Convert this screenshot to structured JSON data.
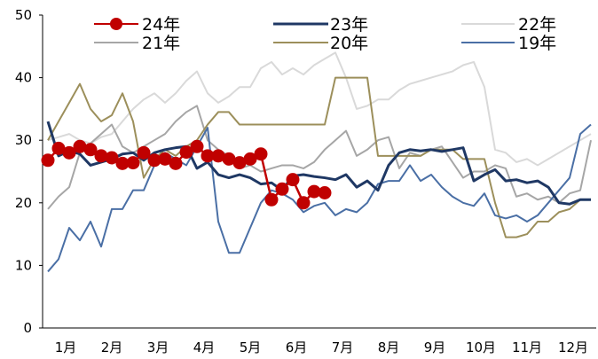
{
  "chart_data": {
    "type": "line",
    "title": "",
    "xlabel": "",
    "ylabel": "",
    "ylim": [
      0,
      50
    ],
    "yticks": [
      0,
      10,
      20,
      30,
      40,
      50
    ],
    "categories": [
      "1月",
      "2月",
      "3月",
      "4月",
      "5月",
      "6月",
      "7月",
      "8月",
      "9月",
      "10月",
      "11月",
      "12月"
    ],
    "x_unit": "week of year (1-52)",
    "grid": false,
    "legend_position": "top",
    "series": [
      {
        "name": "24年",
        "color": "#c00000",
        "markers": true,
        "x": [
          1,
          2,
          3,
          4,
          5,
          6,
          7,
          8,
          9,
          10,
          11,
          12,
          13,
          14,
          15,
          16,
          17,
          18,
          19,
          20,
          21,
          22,
          23,
          24,
          25,
          26,
          27,
          28
        ],
        "values": [
          26.8,
          28.7,
          28.0,
          29.0,
          28.5,
          27.5,
          27.2,
          26.3,
          26.4,
          28.0,
          26.8,
          27.0,
          26.3,
          28.1,
          29.0,
          27.5,
          27.5,
          27.0,
          26.4,
          27.0,
          27.8,
          20.5,
          22.2,
          23.7,
          20.0,
          21.8,
          21.6,
          null
        ]
      },
      {
        "name": "23年",
        "color": "#1f3864",
        "markers": false,
        "x": [
          1,
          2,
          3,
          4,
          5,
          6,
          7,
          8,
          9,
          10,
          11,
          12,
          13,
          14,
          15,
          16,
          17,
          18,
          19,
          20,
          21,
          22,
          23,
          24,
          25,
          26,
          27,
          28,
          29,
          30,
          31,
          32,
          33,
          34,
          35,
          36,
          37,
          38,
          39,
          40,
          41,
          42,
          43,
          44,
          45,
          46,
          47,
          48,
          49,
          50,
          51,
          52
        ],
        "values": [
          33,
          27.5,
          28.3,
          27.8,
          26,
          26.5,
          27,
          27.8,
          28,
          26.8,
          28,
          28.5,
          28.8,
          29,
          25.5,
          26.5,
          24.5,
          24,
          24.5,
          24,
          23,
          23.2,
          22,
          24.3,
          24.5,
          24.2,
          24,
          23.7,
          24.5,
          22.5,
          23.5,
          22,
          26,
          28,
          28.5,
          28.3,
          28.5,
          28.2,
          28.5,
          28.8,
          23.5,
          24.5,
          25.3,
          23.5,
          23.7,
          23.2,
          23.5,
          22.5,
          20,
          19.8,
          20.5,
          20.5
        ]
      },
      {
        "name": "22年",
        "color": "#d9d9d9",
        "markers": false,
        "x": [
          1,
          2,
          3,
          4,
          5,
          6,
          7,
          8,
          9,
          10,
          11,
          12,
          13,
          14,
          15,
          16,
          17,
          18,
          19,
          20,
          21,
          22,
          23,
          24,
          25,
          26,
          27,
          28,
          29,
          30,
          31,
          32,
          33,
          34,
          35,
          36,
          37,
          38,
          39,
          40,
          41,
          42,
          43,
          44,
          45,
          46,
          47,
          48,
          49,
          50,
          51,
          52
        ],
        "values": [
          30,
          30.5,
          31,
          30,
          29.5,
          30.5,
          31,
          33,
          35,
          36.5,
          37.5,
          36,
          37.5,
          39.5,
          41,
          37.5,
          36,
          37,
          38.5,
          38.5,
          41.5,
          42.5,
          40.5,
          41.5,
          40.5,
          42,
          43,
          44,
          40,
          35,
          35.5,
          36.5,
          36.5,
          38,
          39,
          39.5,
          40,
          40.5,
          41,
          42,
          42.5,
          38.5,
          28.5,
          28,
          26.5,
          27,
          26,
          27,
          28,
          29,
          30,
          31
        ]
      },
      {
        "name": "21年",
        "color": "#a6a6a6",
        "markers": false,
        "x": [
          1,
          2,
          3,
          4,
          5,
          6,
          7,
          8,
          9,
          10,
          11,
          12,
          13,
          14,
          15,
          16,
          17,
          18,
          19,
          20,
          21,
          22,
          23,
          24,
          25,
          26,
          27,
          28,
          29,
          30,
          31,
          32,
          33,
          34,
          35,
          36,
          37,
          38,
          39,
          40,
          41,
          42,
          43,
          44,
          45,
          46,
          47,
          48,
          49,
          50,
          51,
          52
        ],
        "values": [
          19,
          21,
          22.5,
          28,
          29.5,
          31,
          32.5,
          29,
          28,
          29,
          30,
          31,
          33,
          34.5,
          35.5,
          30,
          28.5,
          27.5,
          25.5,
          26,
          25,
          25.5,
          26,
          26,
          25.5,
          26.5,
          28.5,
          30,
          31.5,
          27.5,
          28.5,
          30,
          30.5,
          25.5,
          28,
          27.5,
          28.5,
          29,
          26.5,
          24,
          25,
          25,
          26,
          25.5,
          21,
          21.5,
          20.5,
          21,
          20,
          21.5,
          22,
          30
        ]
      },
      {
        "name": "20年",
        "color": "#9c8f5b",
        "markers": false,
        "x": [
          1,
          2,
          3,
          4,
          5,
          6,
          7,
          8,
          9,
          10,
          11,
          12,
          13,
          14,
          15,
          16,
          17,
          18,
          19,
          20,
          21,
          22,
          23,
          24,
          25,
          26,
          27,
          28,
          29,
          30,
          31,
          32,
          33,
          34,
          35,
          36,
          37,
          38,
          39,
          40,
          41,
          42,
          43,
          44,
          45,
          46,
          47,
          48,
          49,
          50,
          51,
          52
        ],
        "values": [
          30,
          33,
          36,
          39,
          35,
          33,
          34,
          37.5,
          33,
          24,
          27,
          28.5,
          27.5,
          29,
          30,
          32.5,
          34.5,
          34.5,
          32.5,
          32.5,
          32.5,
          32.5,
          32.5,
          32.5,
          32.5,
          32.5,
          32.5,
          40,
          40,
          40,
          40,
          27.5,
          27.5,
          27.5,
          27.5,
          27.5,
          28.5,
          28.5,
          28.5,
          27,
          27,
          27,
          20,
          14.5,
          14.5,
          15,
          17,
          17,
          18.5,
          19,
          20.5,
          20.5
        ]
      },
      {
        "name": "19年",
        "color": "#4a6fa5",
        "markers": false,
        "x": [
          1,
          2,
          3,
          4,
          5,
          6,
          7,
          8,
          9,
          10,
          11,
          12,
          13,
          14,
          15,
          16,
          17,
          18,
          19,
          20,
          21,
          22,
          23,
          24,
          25,
          26,
          27,
          28,
          29,
          30,
          31,
          32,
          33,
          34,
          35,
          36,
          37,
          38,
          39,
          40,
          41,
          42,
          43,
          44,
          45,
          46,
          47,
          48,
          49,
          50,
          51,
          52
        ],
        "values": [
          9,
          11,
          16,
          14,
          17,
          13,
          19,
          19,
          22,
          22,
          26,
          28,
          27,
          26,
          29,
          32,
          17,
          12,
          12,
          16,
          20,
          22,
          21.5,
          20.5,
          18.5,
          19.5,
          20,
          18,
          19,
          18.5,
          20,
          23,
          23.5,
          23.5,
          26,
          23.5,
          24.5,
          22.5,
          21,
          20,
          19.5,
          21.5,
          18,
          17.5,
          18,
          17,
          18,
          20,
          22,
          24,
          31,
          32.5
        ]
      }
    ]
  }
}
